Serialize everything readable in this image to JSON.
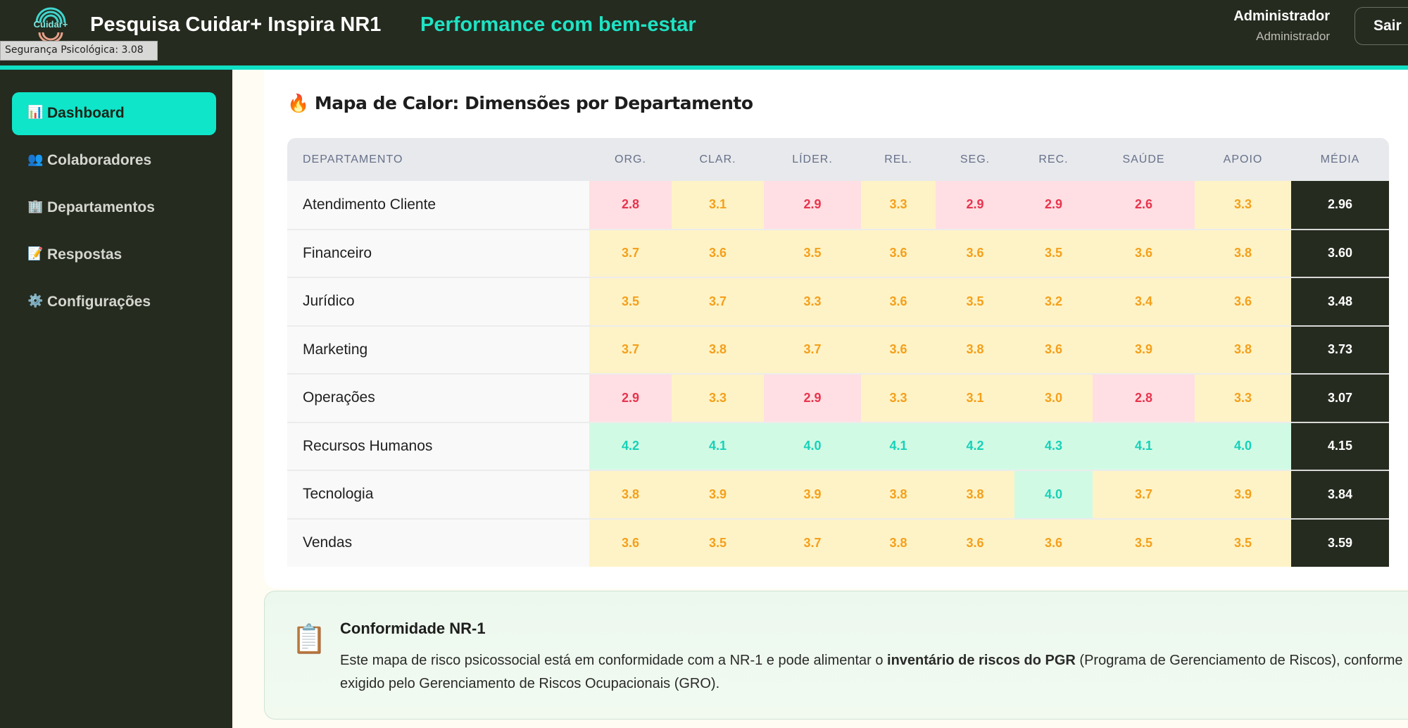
{
  "header": {
    "logo_text": "Cuidar+",
    "title": "Pesquisa Cuidar+ Inspira NR1",
    "tagline": "Performance com bem-estar",
    "user_name": "Administrador",
    "user_role": "Administrador",
    "logout_label": "Sair"
  },
  "tooltip": "Segurança Psicológica: 3.08",
  "sidebar": {
    "items": [
      {
        "icon": "📊",
        "icon_name": "bar-chart-icon",
        "label": "Dashboard",
        "active": true
      },
      {
        "icon": "👥",
        "icon_name": "users-icon",
        "label": "Colaboradores"
      },
      {
        "icon": "🏢",
        "icon_name": "building-icon",
        "label": "Departamentos"
      },
      {
        "icon": "📝",
        "icon_name": "memo-icon",
        "label": "Respostas"
      },
      {
        "icon": "⚙️",
        "icon_name": "gear-icon",
        "label": "Configurações"
      }
    ]
  },
  "heatmap": {
    "icon": "🔥",
    "title": "Mapa de Calor: Dimensões por Departamento",
    "columns": [
      "DEPARTAMENTO",
      "ORG.",
      "CLAR.",
      "LÍDER.",
      "REL.",
      "SEG.",
      "REC.",
      "SAÚDE",
      "APOIO",
      "MÉDIA"
    ],
    "rows": [
      {
        "dept": "Atendimento Cliente",
        "values": [
          "2.8",
          "3.1",
          "2.9",
          "3.3",
          "2.9",
          "2.9",
          "2.6",
          "3.3"
        ],
        "media": "2.96"
      },
      {
        "dept": "Financeiro",
        "values": [
          "3.7",
          "3.6",
          "3.5",
          "3.6",
          "3.6",
          "3.5",
          "3.6",
          "3.8"
        ],
        "media": "3.60"
      },
      {
        "dept": "Jurídico",
        "values": [
          "3.5",
          "3.7",
          "3.3",
          "3.6",
          "3.5",
          "3.2",
          "3.4",
          "3.6"
        ],
        "media": "3.48"
      },
      {
        "dept": "Marketing",
        "values": [
          "3.7",
          "3.8",
          "3.7",
          "3.6",
          "3.8",
          "3.6",
          "3.9",
          "3.8"
        ],
        "media": "3.73"
      },
      {
        "dept": "Operações",
        "values": [
          "2.9",
          "3.3",
          "2.9",
          "3.3",
          "3.1",
          "3.0",
          "2.8",
          "3.3"
        ],
        "media": "3.07"
      },
      {
        "dept": "Recursos Humanos",
        "values": [
          "4.2",
          "4.1",
          "4.0",
          "4.1",
          "4.2",
          "4.3",
          "4.1",
          "4.0"
        ],
        "media": "4.15"
      },
      {
        "dept": "Tecnologia",
        "values": [
          "3.8",
          "3.9",
          "3.9",
          "3.8",
          "3.8",
          "4.0",
          "3.7",
          "3.9"
        ],
        "media": "3.84"
      },
      {
        "dept": "Vendas",
        "values": [
          "3.6",
          "3.5",
          "3.7",
          "3.8",
          "3.6",
          "3.6",
          "3.5",
          "3.5"
        ],
        "media": "3.59"
      }
    ],
    "colors": {
      "low_bg": "#ffdfe3",
      "low_text": "#e8344e",
      "mid_bg": "#fef3c7",
      "mid_text": "#f4a01c",
      "high_bg": "#d1fae5",
      "high_text": "#17d1b8"
    }
  },
  "nr1": {
    "icon": "📋",
    "title": "Conformidade NR-1",
    "text_before": "Este mapa de risco psicossocial está em conformidade com a NR-1 e pode alimentar o ",
    "text_bold": "inventário de riscos do PGR",
    "text_after": " (Programa de Gerenciamento de Riscos), conforme exigido pelo Gerenciamento de Riscos Ocupacionais (GRO)."
  },
  "colors": {
    "accent": "#0fe5c9",
    "dark": "#252b1f"
  }
}
